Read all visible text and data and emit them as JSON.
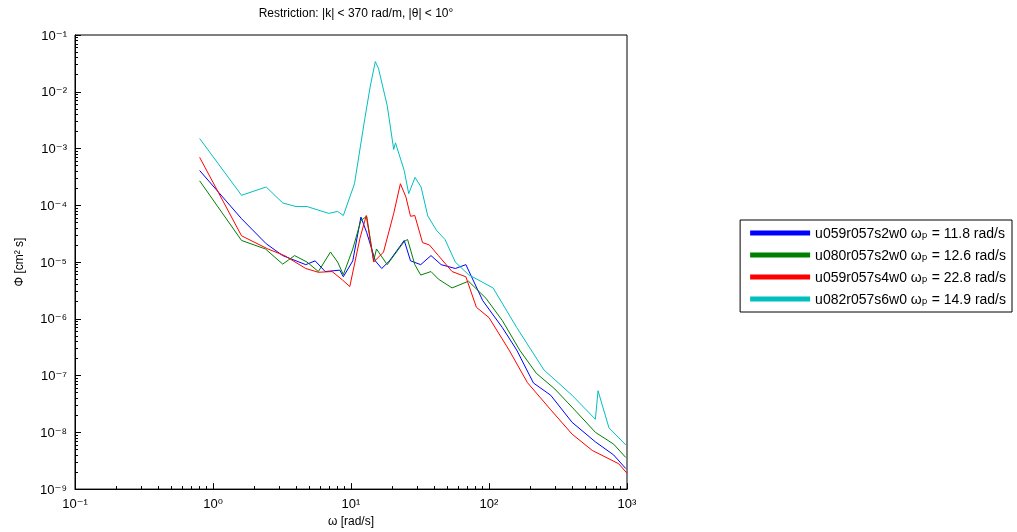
{
  "chart_data": {
    "type": "line",
    "title": "Restriction: |k| < 370 rad/m, |θ| < 10°",
    "xlabel": "ω [rad/s]",
    "ylabel": "Φ [cm² s]",
    "log": "xy",
    "grid": false,
    "legend": "right",
    "marker": "none",
    "line_style": "solid",
    "xlim": [
      0.1,
      1000
    ],
    "xticks": [
      {
        "value": 0.1,
        "label": "10⁻¹"
      },
      {
        "value": 1,
        "label": "10⁰"
      },
      {
        "value": 10,
        "label": "10¹"
      },
      {
        "value": 100,
        "label": "10²"
      },
      {
        "value": 1000,
        "label": "10³"
      }
    ],
    "ylim": [
      1e-09,
      0.1
    ],
    "yticks": [
      {
        "value": 1e-09,
        "label": "10⁻⁹"
      },
      {
        "value": 1e-08,
        "label": "10⁻⁸"
      },
      {
        "value": 1e-07,
        "label": "10⁻⁷"
      },
      {
        "value": 1e-06,
        "label": "10⁻⁶"
      },
      {
        "value": 1e-05,
        "label": "10⁻⁵"
      },
      {
        "value": 0.0001,
        "label": "10⁻⁴"
      },
      {
        "value": 0.001,
        "label": "10⁻³"
      },
      {
        "value": 0.01,
        "label": "10⁻²"
      },
      {
        "value": 0.1,
        "label": "10⁻¹"
      }
    ],
    "series": [
      {
        "name": "u059r057s2w0 ωₚ = 11.8 rad/s",
        "color": "#0000ff",
        "x": [
          0.8,
          1.61,
          2.43,
          3.2,
          4.7,
          5.5,
          6.5,
          8.3,
          8.8,
          10.3,
          11.8,
          13,
          15,
          16.7,
          19,
          24.3,
          27,
          32,
          38,
          45,
          57,
          68,
          90,
          125,
          159,
          210,
          280,
          400,
          590,
          800,
          980
        ],
        "values": [
          0.00041,
          5.8e-05,
          2.1e-05,
          1.3e-05,
          9e-06,
          1.05e-05,
          6.8e-06,
          7.2e-06,
          5.5e-06,
          1.05e-05,
          6.2e-05,
          3.3e-05,
          1.05e-05,
          7.7e-06,
          1.05e-05,
          2.4e-05,
          1.05e-05,
          9e-06,
          1.3e-05,
          9e-06,
          7.7e-06,
          9e-06,
          2.1e-06,
          7e-07,
          2.8e-07,
          7.4e-08,
          4.5e-08,
          1.5e-08,
          6.8e-09,
          4e-09,
          2.3e-09
        ]
      },
      {
        "name": "u080r057s2w0 ωₚ = 12.6 rad/s",
        "color": "#008000",
        "x": [
          0.8,
          1.61,
          2.4,
          3.2,
          3.9,
          4.8,
          5.8,
          7.1,
          8,
          8.8,
          10.3,
          11.8,
          13,
          14.6,
          15.3,
          18.3,
          24.3,
          25.7,
          29,
          32,
          38,
          43,
          54,
          71,
          95,
          125,
          167,
          220,
          300,
          430,
          590,
          800,
          980
        ],
        "values": [
          0.00027,
          2.4e-05,
          1.7e-05,
          9.2e-06,
          1.3e-05,
          1e-05,
          6.8e-06,
          1.5e-05,
          1e-05,
          6e-06,
          1.7e-05,
          5.4e-05,
          6.4e-05,
          1.05e-05,
          1.7e-05,
          9e-06,
          2.3e-05,
          2.5e-05,
          9e-06,
          5.9e-06,
          6.8e-06,
          5e-06,
          3.5e-06,
          4.6e-06,
          2.3e-06,
          9.3e-07,
          2.8e-07,
          1.1e-07,
          5.8e-08,
          2.3e-08,
          1e-08,
          6.2e-09,
          3.6e-09
        ]
      },
      {
        "name": "u059r057s4w0 ωₚ = 22.8 rad/s",
        "color": "#ff0000",
        "x": [
          0.8,
          1.61,
          2.5,
          3.3,
          4.7,
          5.8,
          7.3,
          8.7,
          9.8,
          11.6,
          12.9,
          14.6,
          17.2,
          20.4,
          22.8,
          25,
          27,
          29,
          33,
          37,
          43,
          54,
          68,
          81,
          100,
          140,
          190,
          280,
          400,
          560,
          870,
          1000
        ],
        "values": [
          0.0007,
          2.9e-05,
          1.7e-05,
          1.3e-05,
          7.7e-06,
          6.6e-06,
          6.8e-06,
          4.8e-06,
          3.7e-06,
          2.6e-05,
          6.6e-05,
          1e-05,
          1.5e-05,
          7.2e-05,
          0.00024,
          0.00014,
          6.4e-05,
          6.6e-05,
          2.2e-05,
          2e-05,
          1.3e-05,
          6.8e-06,
          5.5e-06,
          1.6e-06,
          1.05e-06,
          2.8e-07,
          7.5e-08,
          2.5e-08,
          9.3e-09,
          4.8e-09,
          2.8e-09,
          1.9e-09
        ]
      },
      {
        "name": "u082r057s6w0 ωₚ = 14.9 rad/s",
        "color": "#00bfbf",
        "x": [
          0.8,
          1.61,
          2.43,
          3.2,
          4,
          4.8,
          6.9,
          8,
          8.8,
          10.6,
          12.6,
          13.8,
          15,
          15.8,
          18.3,
          20.4,
          21,
          24.3,
          26.2,
          29.1,
          32.2,
          36,
          41.7,
          48,
          57,
          71,
          107,
          159,
          250,
          400,
          590,
          617,
          740,
          980
        ],
        "values": [
          0.0015,
          0.00015,
          0.00021,
          0.00011,
          9.5e-05,
          9.5e-05,
          7.2e-05,
          7.8e-05,
          6.6e-05,
          0.00024,
          0.0034,
          0.0126,
          0.034,
          0.026,
          0.0057,
          0.00096,
          0.00126,
          0.00041,
          0.00016,
          0.00031,
          0.00021,
          6.5e-05,
          3.6e-05,
          2.5e-05,
          1e-05,
          6e-06,
          3.5e-06,
          7e-07,
          1.26e-07,
          4.5e-08,
          1.7e-08,
          5.4e-08,
          1.2e-08,
          6e-09
        ]
      }
    ]
  }
}
